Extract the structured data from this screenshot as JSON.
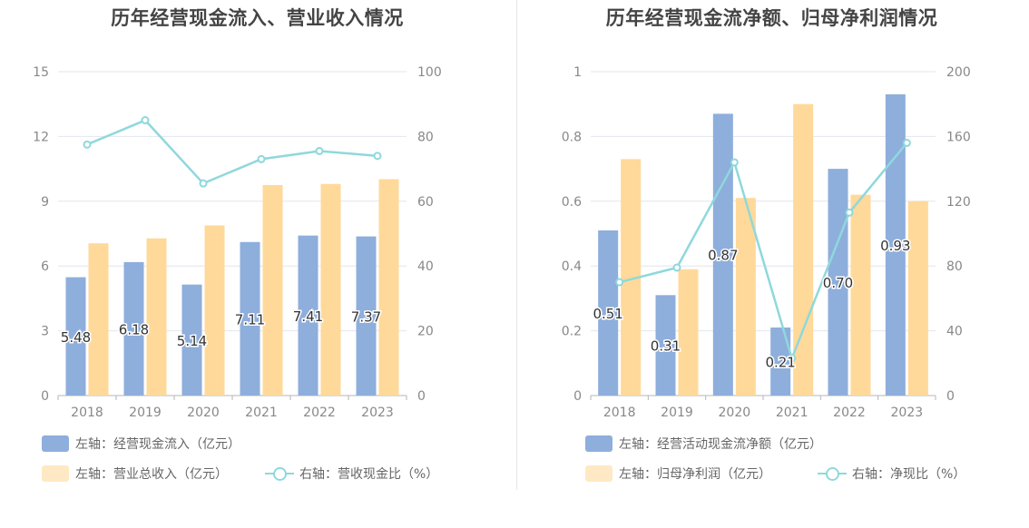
{
  "colors": {
    "bar_primary": "#8eaedc",
    "bar_secondary": "#ffd99a",
    "line": "#8fd8dc",
    "grid": "#e3e6ef",
    "axis": "#b6b6b6",
    "tick": "#888888"
  },
  "chart_data": [
    {
      "type": "bar",
      "title": "历年经营现金流入、营业收入情况",
      "categories": [
        "2018",
        "2019",
        "2020",
        "2021",
        "2022",
        "2023"
      ],
      "left_axis": {
        "ylim": [
          0,
          15
        ],
        "ticks": [
          "0",
          "3",
          "6",
          "9",
          "12",
          "15"
        ]
      },
      "right_axis": {
        "ylim": [
          0,
          100
        ],
        "ticks": [
          "0",
          "20",
          "40",
          "60",
          "80",
          "100"
        ]
      },
      "series": [
        {
          "name": "左轴：经营现金流入（亿元）",
          "kind": "bar",
          "axis": "left",
          "values": [
            5.48,
            6.18,
            5.14,
            7.11,
            7.41,
            7.37
          ],
          "labels": [
            "5.48",
            "6.18",
            "5.14",
            "7.11",
            "7.41",
            "7.37"
          ]
        },
        {
          "name": "左轴：营业总收入（亿元）",
          "kind": "bar",
          "axis": "left",
          "values": [
            7.05,
            7.28,
            7.88,
            9.75,
            9.8,
            10.02
          ]
        },
        {
          "name": "右轴：营收现金比（%）",
          "kind": "line",
          "axis": "right",
          "values": [
            77.5,
            85.0,
            65.5,
            73.0,
            75.5,
            74.0
          ]
        }
      ]
    },
    {
      "type": "bar",
      "title": "历年经营现金流净额、归母净利润情况",
      "categories": [
        "2018",
        "2019",
        "2020",
        "2021",
        "2022",
        "2023"
      ],
      "left_axis": {
        "ylim": [
          0,
          1
        ],
        "ticks": [
          "0",
          "0.2",
          "0.4",
          "0.6",
          "0.8",
          "1"
        ]
      },
      "right_axis": {
        "ylim": [
          0,
          200
        ],
        "ticks": [
          "0",
          "40",
          "80",
          "120",
          "160",
          "200"
        ]
      },
      "series": [
        {
          "name": "左轴：经营活动现金流净额（亿元）",
          "kind": "bar",
          "axis": "left",
          "values": [
            0.51,
            0.31,
            0.87,
            0.21,
            0.7,
            0.93
          ],
          "labels": [
            "0.51",
            "0.31",
            "0.87",
            "0.21",
            "0.70",
            "0.93"
          ]
        },
        {
          "name": "左轴：归母净利润（亿元）",
          "kind": "bar",
          "axis": "left",
          "values": [
            0.73,
            0.39,
            0.61,
            0.9,
            0.62,
            0.6
          ]
        },
        {
          "name": "右轴：净现比（%）",
          "kind": "line",
          "axis": "right",
          "values": [
            70,
            79,
            144,
            23,
            113,
            156
          ]
        }
      ]
    }
  ]
}
